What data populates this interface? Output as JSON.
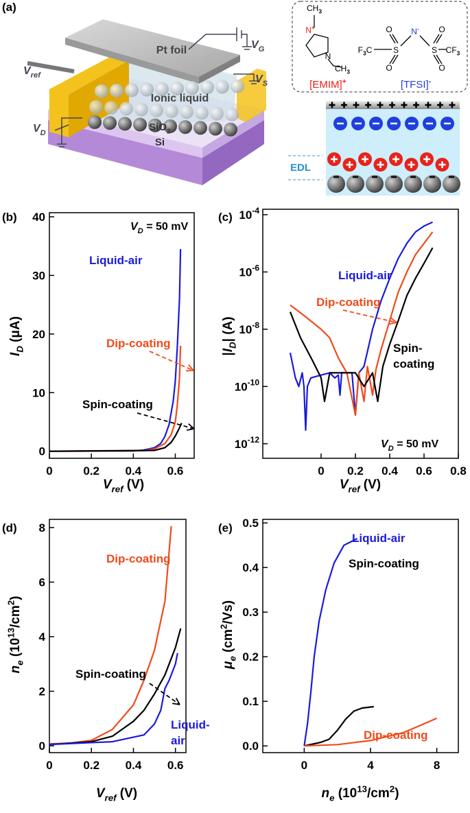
{
  "diagram": {
    "label": "(a)",
    "pt_foil": "Pt foil",
    "ionic_liquid": "Ionic liquid",
    "sio2": [
      {
        "text": "SiO",
        "style": "b"
      },
      {
        "text": "2",
        "style": "sub"
      }
    ],
    "si": "Si",
    "v_ref": [
      {
        "text": "V",
        "style": "bi"
      },
      {
        "text": "ref",
        "style": "isub"
      }
    ],
    "v_g": [
      {
        "text": "V",
        "style": "bi"
      },
      {
        "text": "G",
        "style": "isub"
      }
    ],
    "v_s": [
      {
        "text": "V",
        "style": "bi"
      },
      {
        "text": "S",
        "style": "isub"
      }
    ],
    "v_d": [
      {
        "text": "V",
        "style": "bi"
      },
      {
        "text": "D",
        "style": "isub"
      }
    ],
    "cation": [
      {
        "text": "[EMIM]",
        "style": "n"
      },
      {
        "text": "+",
        "style": "sup"
      }
    ],
    "anion": [
      {
        "text": "[TFSI]",
        "style": "n"
      },
      {
        "text": "-",
        "style": "sup"
      }
    ],
    "atoms": [
      [
        {
          "text": "CH",
          "style": "n"
        },
        {
          "text": "3",
          "style": "sub"
        }
      ],
      [
        {
          "text": "N",
          "style": "n"
        },
        {
          "text": "+",
          "style": "sup"
        }
      ],
      [
        {
          "text": "N",
          "style": "n"
        }
      ],
      [
        {
          "text": "CH",
          "style": "n"
        },
        {
          "text": "3",
          "style": "sub"
        }
      ],
      [
        {
          "text": "F",
          "style": "n"
        },
        {
          "text": "3",
          "style": "sub"
        },
        {
          "text": "C",
          "style": "n"
        }
      ],
      [
        {
          "text": "S",
          "style": "n"
        }
      ],
      [
        {
          "text": "O",
          "style": "n"
        }
      ],
      [
        {
          "text": "O",
          "style": "n"
        }
      ],
      [
        {
          "text": "N",
          "style": "n"
        },
        {
          "text": "-",
          "style": "sup"
        }
      ],
      [
        {
          "text": "S",
          "style": "n"
        }
      ],
      [
        {
          "text": "O",
          "style": "n"
        }
      ],
      [
        {
          "text": "O",
          "style": "n"
        }
      ],
      [
        {
          "text": "CF",
          "style": "n"
        },
        {
          "text": "3",
          "style": "sub"
        }
      ]
    ],
    "edl": "EDL"
  },
  "chart_data": [
    {
      "type": "line",
      "label": "(b)",
      "xlabel": [
        {
          "text": "V",
          "style": "bi"
        },
        {
          "text": "ref",
          "style": "isub"
        },
        {
          "text": " (V)",
          "style": "b"
        }
      ],
      "ylabel": [
        {
          "text": "I",
          "style": "bi"
        },
        {
          "text": "D",
          "style": "isub"
        },
        {
          "text": " (μA)",
          "style": "b"
        }
      ],
      "xlim": [
        0,
        0.69
      ],
      "xticks": [
        0,
        0.2,
        0.4,
        0.6
      ],
      "ylim": [
        -1.2,
        40.7
      ],
      "yticks": [
        0,
        10,
        20,
        30,
        40
      ],
      "annotations": [
        [
          {
            "text": "V",
            "style": "bi"
          },
          {
            "text": "D",
            "style": "isub"
          },
          {
            "text": " = 50 mV",
            "style": "b"
          }
        ]
      ],
      "series": [
        {
          "name": "Liquid-air",
          "color": "#1a1adb",
          "x": [
            0,
            0.4,
            0.45,
            0.5,
            0.53,
            0.55,
            0.57,
            0.59,
            0.6,
            0.61,
            0.62,
            0.625
          ],
          "values": [
            0,
            0.05,
            0.2,
            0.6,
            1.3,
            2.5,
            4.5,
            8.5,
            12,
            18,
            26,
            34.5
          ]
        },
        {
          "name": "Dip-coating",
          "color": "#f04a1a",
          "x": [
            0,
            0.45,
            0.5,
            0.55,
            0.58,
            0.6,
            0.61,
            0.62,
            0.625
          ],
          "values": [
            0,
            0.1,
            0.4,
            1.3,
            2.8,
            5,
            8,
            12.5,
            18
          ]
        },
        {
          "name": "Spin-coating",
          "color": "#000000",
          "x": [
            0,
            0.5,
            0.55,
            0.58,
            0.6,
            0.62,
            0.63
          ],
          "values": [
            0,
            0.15,
            0.6,
            1.5,
            2.6,
            4,
            4.8
          ]
        }
      ]
    },
    {
      "type": "line",
      "label": "(c)",
      "ylog": true,
      "xlabel": [
        {
          "text": "V",
          "style": "bi"
        },
        {
          "text": "ref",
          "style": "isub"
        },
        {
          "text": " (V)",
          "style": "b"
        }
      ],
      "ylabel": [
        {
          "text": "|",
          "style": "b"
        },
        {
          "text": "I",
          "style": "bi"
        },
        {
          "text": "D",
          "style": "isub"
        },
        {
          "text": "| (A)",
          "style": "b"
        }
      ],
      "xlim": [
        -0.34,
        0.8
      ],
      "xticks": [
        0,
        0.2,
        0.4,
        0.6,
        0.8
      ],
      "ylim": [
        3.1e-13,
        0.000155
      ],
      "yticks": [
        {
          "value": 1e-12,
          "label": [
            "10",
            "-12"
          ]
        },
        {
          "value": 1e-10,
          "label": [
            "10",
            "-10"
          ]
        },
        {
          "value": 1e-08,
          "label": [
            "10",
            "-8"
          ]
        },
        {
          "value": 1e-06,
          "label": [
            "10",
            "-6"
          ]
        },
        {
          "value": 0.0001,
          "label": [
            "10",
            "-4"
          ]
        }
      ],
      "annotations": [
        [
          {
            "text": "V",
            "style": "bi"
          },
          {
            "text": "D",
            "style": "isub"
          },
          {
            "text": " = 50 mV",
            "style": "b"
          }
        ]
      ],
      "series": [
        {
          "name": "Liquid-air",
          "color": "#1a1adb",
          "x": [
            -0.18,
            -0.15,
            -0.13,
            -0.11,
            -0.1,
            -0.09,
            -0.08,
            -0.06,
            0,
            0.05,
            0.08,
            0.1,
            0.11,
            0.12,
            0.18,
            0.2,
            0.22,
            0.25,
            0.3,
            0.35,
            0.4,
            0.45,
            0.5,
            0.55,
            0.6,
            0.65
          ],
          "values": [
            1.5e-09,
            2e-10,
            1e-10,
            3e-10,
            1e-10,
            3e-12,
            1e-10,
            2e-10,
            2.5e-10,
            3e-10,
            2e-10,
            2.5e-10,
            5e-11,
            3e-10,
            3e-10,
            1e-11,
            3e-10,
            5e-10,
            1e-08,
            1e-07,
            6e-07,
            3e-06,
            1e-05,
            2.5e-05,
            4e-05,
            5.5e-05
          ]
        },
        {
          "name": "Dip-coating",
          "color": "#f04a1a",
          "x": [
            -0.18,
            -0.1,
            0,
            0.05,
            0.1,
            0.15,
            0.2,
            0.22,
            0.25,
            0.27,
            0.3,
            0.32,
            0.35,
            0.4,
            0.45,
            0.5,
            0.55,
            0.6,
            0.65
          ],
          "values": [
            7e-08,
            3e-08,
            1e-08,
            5e-09,
            1e-09,
            3e-10,
            1e-11,
            3e-10,
            3e-11,
            5e-10,
            5e-11,
            4e-10,
            2e-09,
            2e-08,
            2e-07,
            1e-06,
            4e-06,
            1e-05,
            2.5e-05
          ]
        },
        {
          "name": "Spin-coating",
          "color": "#000000",
          "wrap": true,
          "x": [
            -0.18,
            -0.12,
            -0.05,
            0,
            0.02,
            0.05,
            0.1,
            0.2,
            0.25,
            0.3,
            0.33,
            0.36,
            0.4,
            0.45,
            0.5,
            0.55,
            0.6,
            0.65
          ],
          "values": [
            4e-08,
            5e-09,
            8e-10,
            2e-10,
            3e-11,
            3e-10,
            3e-10,
            3e-10,
            1e-10,
            3e-10,
            3e-11,
            5e-10,
            3e-09,
            2e-08,
            1.5e-07,
            6e-07,
            2e-06,
            7e-06
          ]
        }
      ]
    },
    {
      "type": "line",
      "label": "(d)",
      "xlabel": [
        {
          "text": "V",
          "style": "bi"
        },
        {
          "text": "ref",
          "style": "isub"
        },
        {
          "text": " (V)",
          "style": "b"
        }
      ],
      "ylabel": [
        {
          "text": "n",
          "style": "bi"
        },
        {
          "text": "e",
          "style": "isub"
        },
        {
          "text": " (10",
          "style": "b"
        },
        {
          "text": "13",
          "style": "sup"
        },
        {
          "text": "/cm",
          "style": "b"
        },
        {
          "text": "2",
          "style": "sup"
        },
        {
          "text": ")",
          "style": "b"
        }
      ],
      "xlim": [
        0,
        0.65
      ],
      "xticks": [
        0,
        0.2,
        0.4,
        0.6
      ],
      "ylim": [
        -0.25,
        8.3
      ],
      "yticks": [
        0,
        2,
        4,
        6,
        8
      ],
      "series": [
        {
          "name": "Dip-coating",
          "color": "#f04a1a",
          "x": [
            0,
            0.1,
            0.2,
            0.3,
            0.4,
            0.45,
            0.5,
            0.55,
            0.58
          ],
          "values": [
            0.07,
            0.1,
            0.2,
            0.6,
            1.5,
            2.4,
            3.5,
            5.3,
            8.05
          ]
        },
        {
          "name": "Spin-coating",
          "color": "#000000",
          "x": [
            0,
            0.2,
            0.3,
            0.4,
            0.45,
            0.5,
            0.55,
            0.6,
            0.625
          ],
          "values": [
            0.05,
            0.15,
            0.35,
            0.9,
            1.3,
            1.9,
            2.6,
            3.6,
            4.3
          ]
        },
        {
          "name": "Liquid-air",
          "color": "#1a1adb",
          "wrap": true,
          "x": [
            0,
            0.3,
            0.45,
            0.5,
            0.53,
            0.55,
            0.57,
            0.6,
            0.61
          ],
          "values": [
            0.05,
            0.15,
            0.4,
            0.8,
            1.3,
            2.1,
            2.4,
            3.0,
            3.4
          ]
        }
      ]
    },
    {
      "type": "line",
      "label": "(e)",
      "xlabel": [
        {
          "text": "n",
          "style": "bi"
        },
        {
          "text": "e",
          "style": "isub"
        },
        {
          "text": " (10",
          "style": "b"
        },
        {
          "text": "13",
          "style": "sup"
        },
        {
          "text": "/cm",
          "style": "b"
        },
        {
          "text": "2",
          "style": "sup"
        },
        {
          "text": ")",
          "style": "b"
        }
      ],
      "ylabel": [
        {
          "text": "μ",
          "style": "bi"
        },
        {
          "text": "e",
          "style": "isub"
        },
        {
          "text": " (cm",
          "style": "b"
        },
        {
          "text": "2",
          "style": "sup"
        },
        {
          "text": "/Vs)",
          "style": "b"
        }
      ],
      "xlim": [
        -2.5,
        9.3
      ],
      "xticks": [
        0,
        4,
        8
      ],
      "ylim": [
        -0.015,
        0.508
      ],
      "yticks": [
        {
          "value": 0,
          "label": "0.0"
        },
        0.1,
        0.2,
        0.3,
        0.4,
        0.5
      ],
      "series": [
        {
          "name": "Liquid-air",
          "color": "#1a1adb",
          "x": [
            0,
            0.2,
            0.4,
            0.6,
            0.9,
            1.3,
            1.8,
            2.4,
            3.2
          ],
          "values": [
            0,
            0.05,
            0.12,
            0.2,
            0.28,
            0.35,
            0.41,
            0.45,
            0.465
          ]
        },
        {
          "name": "Spin-coating",
          "color": "#000000",
          "x": [
            0,
            1,
            1.5,
            2,
            2.5,
            3,
            3.5,
            4.2
          ],
          "values": [
            0,
            0.008,
            0.015,
            0.035,
            0.06,
            0.078,
            0.085,
            0.088
          ]
        },
        {
          "name": "Dip-coating",
          "color": "#f04a1a",
          "x": [
            0,
            2,
            4,
            6,
            8
          ],
          "values": [
            0,
            0.003,
            0.012,
            0.03,
            0.062
          ]
        }
      ]
    }
  ]
}
